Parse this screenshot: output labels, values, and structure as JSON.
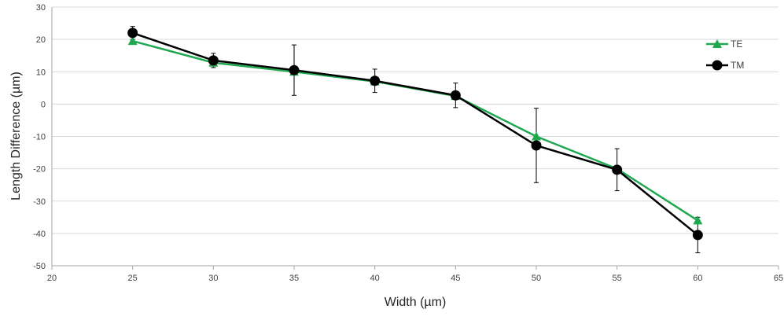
{
  "chart_data": {
    "type": "line",
    "title": "",
    "xlabel": "Width (µm)",
    "ylabel": "Length Difference (µm)",
    "xlim": [
      20,
      65
    ],
    "ylim": [
      -50,
      30
    ],
    "xticks": [
      20,
      25,
      30,
      35,
      40,
      45,
      50,
      55,
      60,
      65
    ],
    "yticks": [
      -50,
      -40,
      -30,
      -20,
      -10,
      0,
      10,
      20,
      30
    ],
    "grid": "horizontal",
    "legend_position": "right",
    "x": [
      25,
      30,
      35,
      40,
      45,
      50,
      55,
      60
    ],
    "series": [
      {
        "name": "TE",
        "color": "#1fa84f",
        "marker": "triangle",
        "values": [
          19.5,
          12.8,
          10.0,
          7.0,
          2.5,
          -10.0,
          -20.0,
          -36.0
        ]
      },
      {
        "name": "TM",
        "color": "#000000",
        "marker": "circle",
        "values": [
          22.0,
          13.5,
          10.5,
          7.2,
          2.7,
          -12.8,
          -20.3,
          -40.5
        ],
        "error": [
          2.0,
          2.2,
          7.8,
          3.6,
          3.8,
          11.5,
          6.5,
          5.5
        ]
      }
    ]
  }
}
